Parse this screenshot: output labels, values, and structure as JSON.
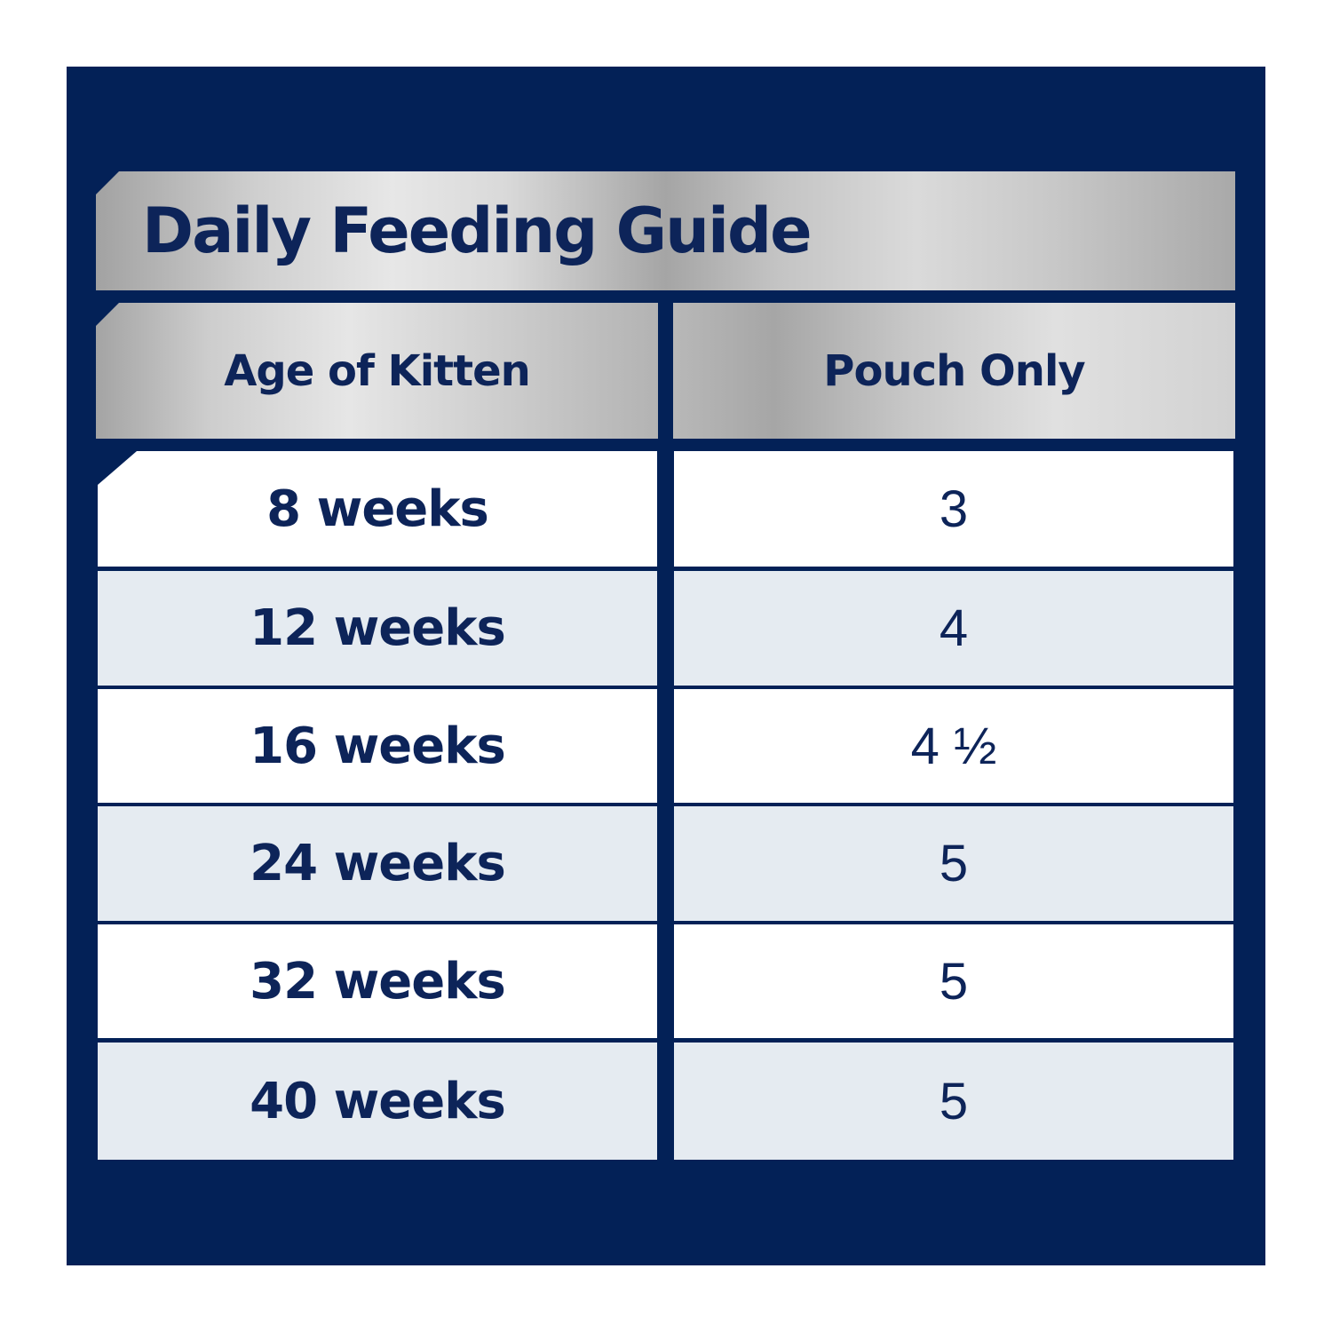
{
  "title": "Daily Feeding Guide",
  "columns": [
    "Age of Kitten",
    "Pouch Only"
  ],
  "rows": [
    {
      "age": "8 weeks",
      "pouch": "3"
    },
    {
      "age": "12 weeks",
      "pouch": "4"
    },
    {
      "age": "16 weeks",
      "pouch": "4 ½"
    },
    {
      "age": "24 weeks",
      "pouch": "5"
    },
    {
      "age": "32 weeks",
      "pouch": "5"
    },
    {
      "age": "40 weeks",
      "pouch": "5"
    }
  ],
  "colors": {
    "background": "#032157",
    "text": "#0d2459",
    "row_light": "#ffffff",
    "row_tint": "#e5ebf1"
  }
}
